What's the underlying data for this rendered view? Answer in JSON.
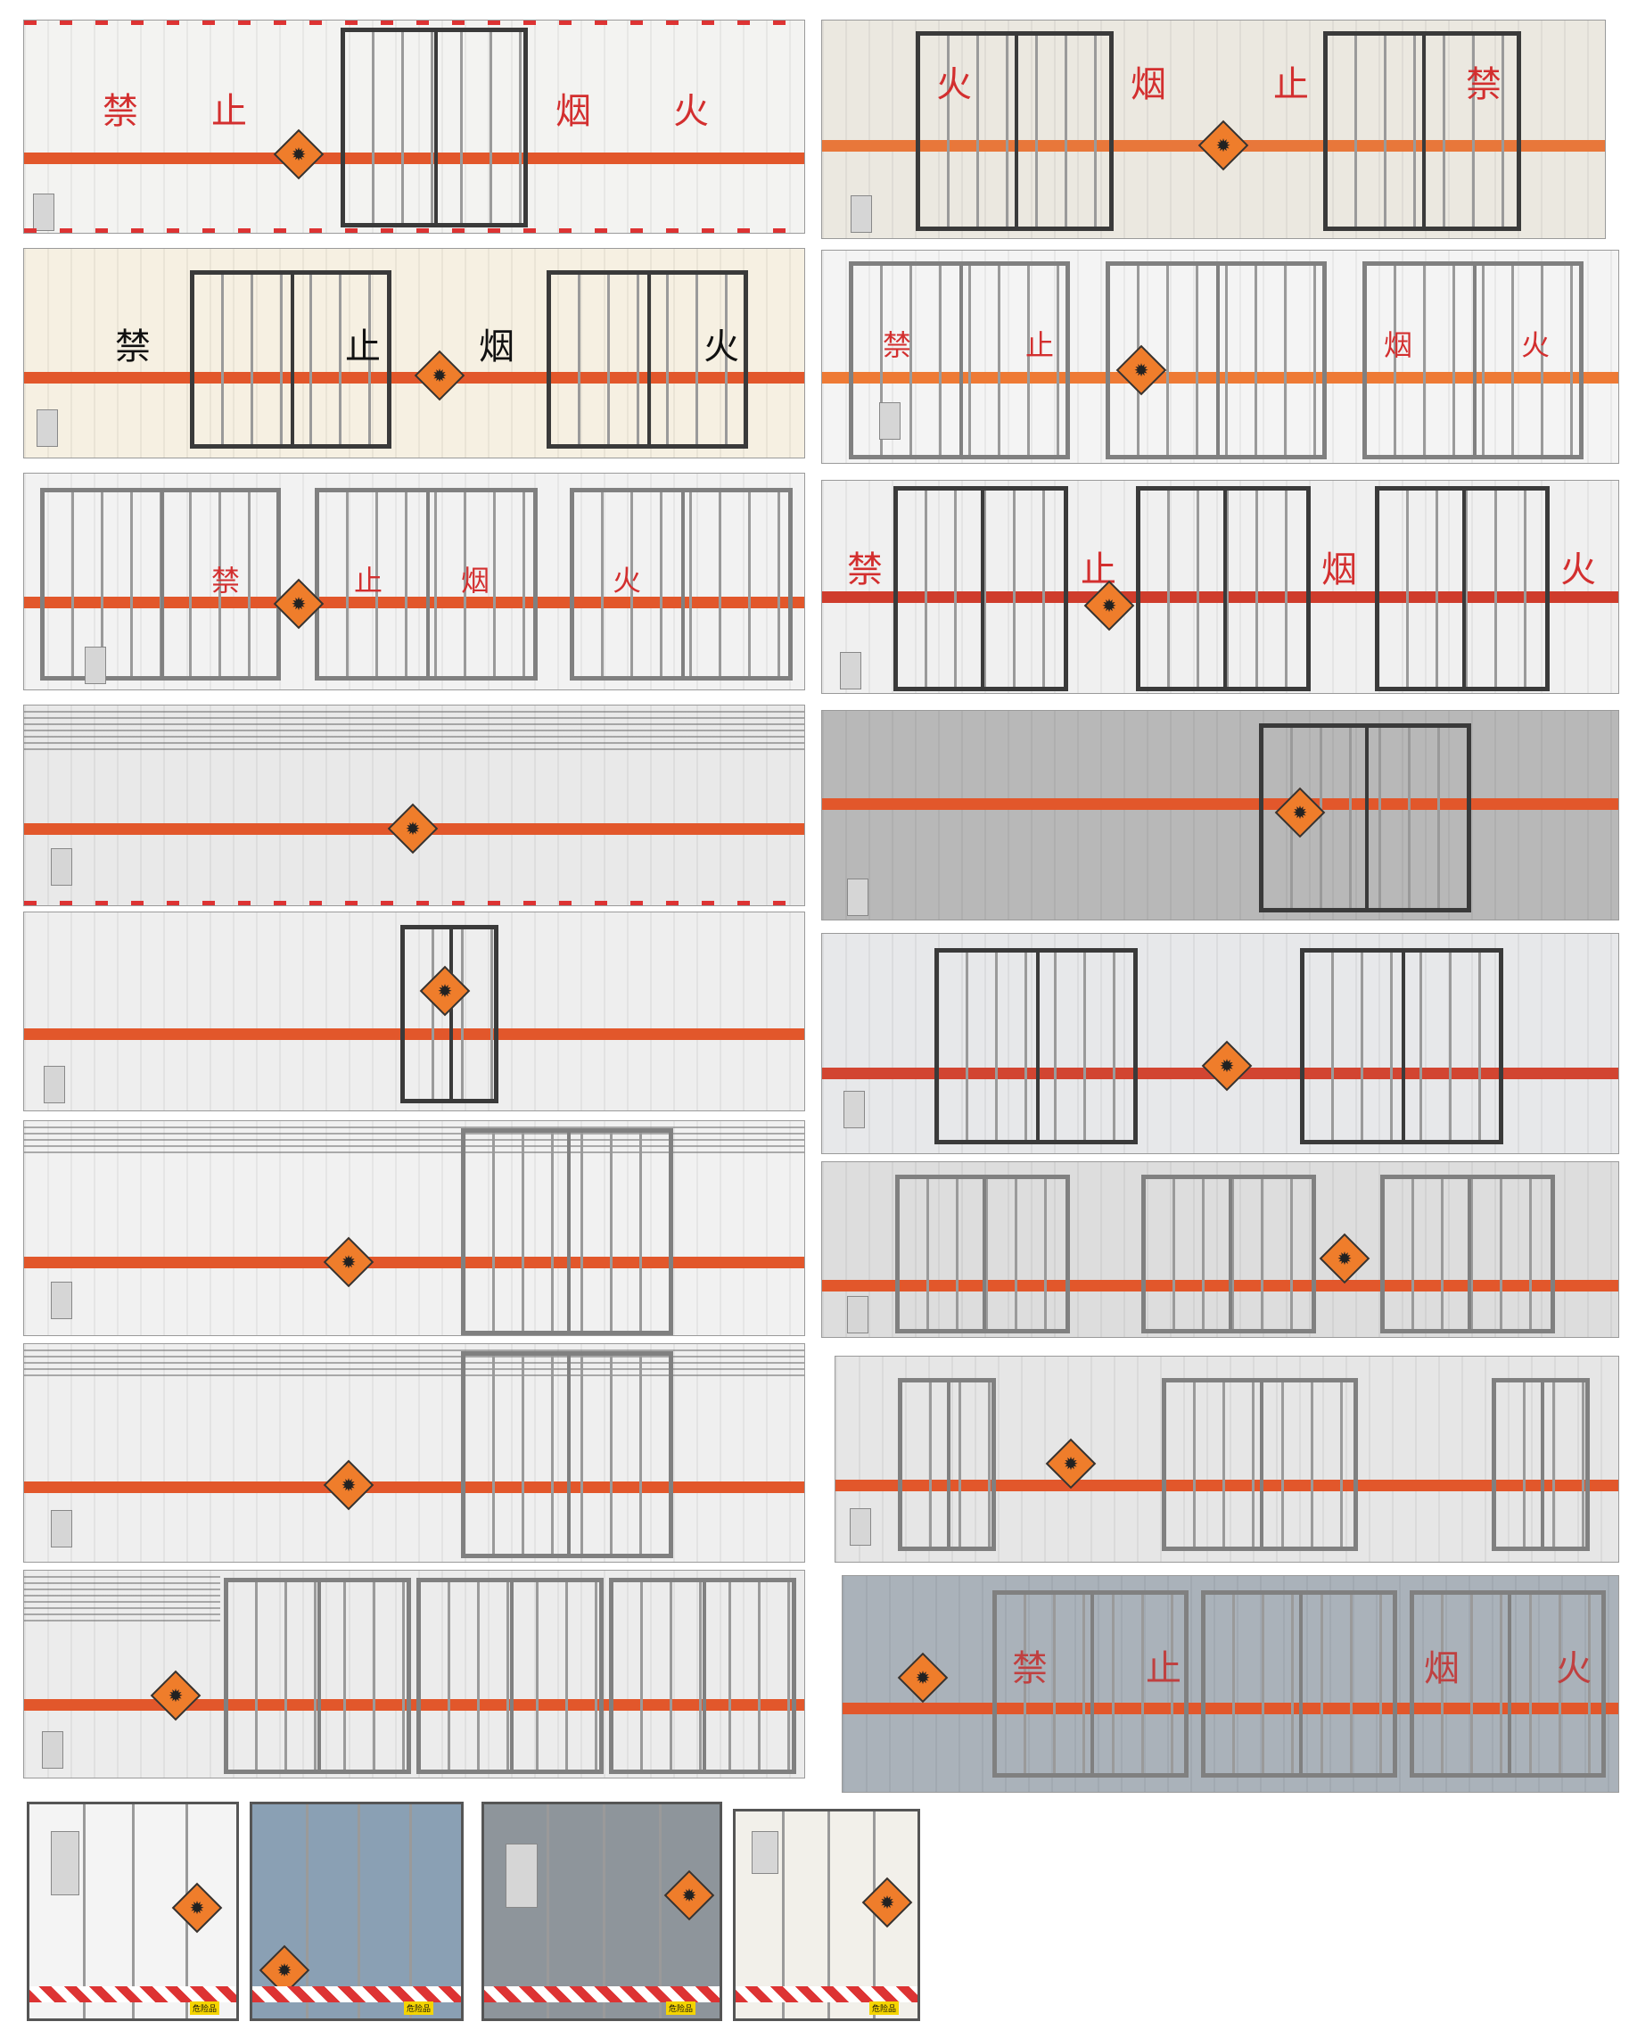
{
  "image": {
    "description_free": true,
    "hazard_tag_text": "危险品",
    "colors": {
      "stripe": "#e2572b",
      "diamond": "#ef7d2b",
      "door_frame": "#3a3a3a"
    }
  },
  "side_panels": [
    {
      "id": "p1",
      "glyphs": [
        "禁",
        "止",
        "烟",
        "火"
      ],
      "glyph_color": "#d32f2f"
    },
    {
      "id": "p2",
      "glyphs": [
        "火",
        "烟",
        "止",
        "禁"
      ],
      "glyph_color": "#d32f2f"
    },
    {
      "id": "p3",
      "glyphs": [
        "禁",
        "止",
        "烟",
        "火"
      ],
      "glyph_color": "#111111"
    },
    {
      "id": "p4",
      "glyphs": [
        "禁",
        "止",
        "烟",
        "火"
      ],
      "glyph_color": "#d32f2f"
    },
    {
      "id": "p5",
      "glyphs": [
        "禁",
        "止",
        "烟",
        "火"
      ],
      "glyph_color": "#d32f2f"
    },
    {
      "id": "p6",
      "glyphs": [
        "禁",
        "止",
        "烟",
        "火"
      ],
      "glyph_color": "#d32f2f"
    },
    {
      "id": "p7",
      "glyphs": []
    },
    {
      "id": "p8",
      "glyphs": []
    },
    {
      "id": "p9",
      "glyphs": []
    },
    {
      "id": "p10",
      "glyphs": []
    },
    {
      "id": "p11",
      "glyphs": []
    },
    {
      "id": "p12",
      "glyphs": []
    },
    {
      "id": "p13",
      "glyphs": []
    },
    {
      "id": "p14",
      "glyphs": []
    },
    {
      "id": "p15",
      "glyphs": []
    },
    {
      "id": "p16",
      "glyphs": [
        "禁",
        "止",
        "烟",
        "火"
      ],
      "glyph_color": "#d32f2f"
    }
  ],
  "rear_views": [
    {
      "id": "r1",
      "tag": "危险品"
    },
    {
      "id": "r2",
      "tag": "危险品"
    },
    {
      "id": "r3",
      "tag": "危险品"
    },
    {
      "id": "r4",
      "tag": "危险品"
    }
  ]
}
